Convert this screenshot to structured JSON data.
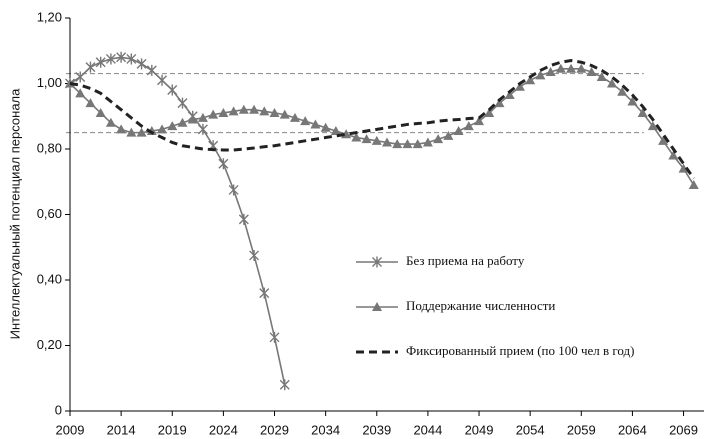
{
  "chart_data": {
    "type": "line",
    "y_label": "Интеллектуальный потенциал персонала",
    "x": [
      2009,
      2010,
      2011,
      2012,
      2013,
      2014,
      2015,
      2016,
      2017,
      2018,
      2019,
      2020,
      2021,
      2022,
      2023,
      2024,
      2025,
      2026,
      2027,
      2028,
      2029,
      2030,
      2031,
      2032,
      2033,
      2034,
      2035,
      2036,
      2037,
      2038,
      2039,
      2040,
      2041,
      2042,
      2043,
      2044,
      2045,
      2046,
      2047,
      2048,
      2049,
      2050,
      2051,
      2052,
      2053,
      2054,
      2055,
      2056,
      2057,
      2058,
      2059,
      2060,
      2061,
      2062,
      2063,
      2064,
      2065,
      2066,
      2067,
      2068,
      2069,
      2070
    ],
    "series": [
      {
        "name": "Без приема на работу",
        "color": "#777777",
        "marker": "asterisk",
        "line_style": "solid",
        "values": [
          1.0,
          1.02,
          1.05,
          1.065,
          1.075,
          1.08,
          1.075,
          1.06,
          1.04,
          1.01,
          0.98,
          0.94,
          0.9,
          0.86,
          0.81,
          0.755,
          0.675,
          0.585,
          0.475,
          0.36,
          0.225,
          0.08,
          null,
          null,
          null,
          null,
          null,
          null,
          null,
          null,
          null,
          null,
          null,
          null,
          null,
          null,
          null,
          null,
          null,
          null,
          null,
          null,
          null,
          null,
          null,
          null,
          null,
          null,
          null,
          null,
          null,
          null,
          null,
          null,
          null,
          null,
          null,
          null,
          null,
          null,
          null,
          null
        ]
      },
      {
        "name": "Поддержание численности",
        "color": "#777777",
        "marker": "triangle",
        "line_style": "solid",
        "values": [
          1.0,
          0.97,
          0.94,
          0.91,
          0.88,
          0.86,
          0.85,
          0.85,
          0.855,
          0.86,
          0.87,
          0.88,
          0.89,
          0.895,
          0.905,
          0.91,
          0.915,
          0.92,
          0.92,
          0.915,
          0.91,
          0.905,
          0.895,
          0.885,
          0.875,
          0.865,
          0.855,
          0.845,
          0.835,
          0.83,
          0.825,
          0.82,
          0.815,
          0.815,
          0.815,
          0.82,
          0.83,
          0.84,
          0.855,
          0.87,
          0.885,
          0.91,
          0.94,
          0.965,
          0.99,
          1.01,
          1.025,
          1.035,
          1.045,
          1.045,
          1.045,
          1.035,
          1.02,
          1.0,
          0.975,
          0.945,
          0.91,
          0.87,
          0.825,
          0.78,
          0.74,
          0.69
        ]
      },
      {
        "name": "Фиксированный прием  (по 100 чел в год)",
        "color": "#222222",
        "marker": null,
        "line_style": "dashed",
        "values": [
          1.0,
          0.995,
          0.985,
          0.97,
          0.945,
          0.92,
          0.895,
          0.87,
          0.85,
          0.835,
          0.82,
          0.81,
          0.805,
          0.8,
          0.798,
          0.797,
          0.797,
          0.8,
          0.803,
          0.807,
          0.81,
          0.815,
          0.82,
          0.825,
          0.83,
          0.835,
          0.84,
          0.845,
          0.85,
          0.855,
          0.86,
          0.865,
          0.87,
          0.875,
          0.878,
          0.88,
          0.885,
          0.888,
          0.89,
          0.893,
          0.895,
          0.92,
          0.95,
          0.975,
          1.0,
          1.02,
          1.04,
          1.055,
          1.065,
          1.07,
          1.065,
          1.055,
          1.04,
          1.02,
          0.995,
          0.965,
          0.93,
          0.89,
          0.845,
          0.8,
          0.755,
          0.71
        ]
      }
    ],
    "reference_lines": [
      1.03,
      0.85
    ],
    "xlim": [
      2009,
      2071
    ],
    "xticks": [
      2009,
      2014,
      2019,
      2024,
      2029,
      2034,
      2039,
      2044,
      2049,
      2054,
      2059,
      2064,
      2069
    ],
    "ylim": [
      0,
      1.2
    ],
    "yticks": [
      0,
      {
        "value": 0.2,
        "label": "0,20"
      },
      {
        "value": 0.4,
        "label": "0,40"
      },
      {
        "value": 0.6,
        "label": "0,60"
      },
      {
        "value": 0.8,
        "label": "0,80"
      },
      {
        "value": 1.0,
        "label": "1,00"
      },
      {
        "value": 1.2,
        "label": "1,20"
      }
    ]
  }
}
